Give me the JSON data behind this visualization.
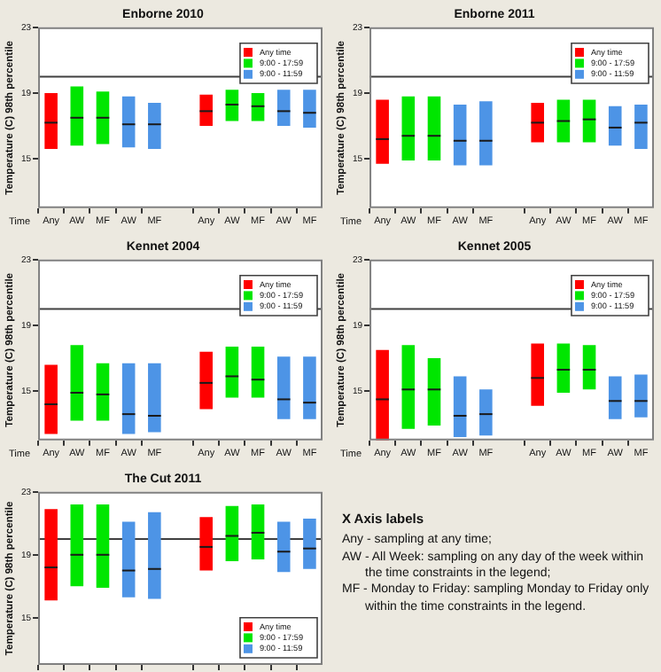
{
  "chart_data": [
    {
      "type": "box",
      "title": "Enborne 2010",
      "xlabel": "Time",
      "ylabel": "Temperature (C) 98th percentile",
      "categories": [
        "Any",
        "AW",
        "MF",
        "AW",
        "MF",
        null,
        "Any",
        "AW",
        "MF",
        "AW",
        "MF"
      ],
      "ylim": [
        12,
        23
      ],
      "yticks": [
        15,
        19,
        23
      ],
      "legend": "top right",
      "ref_lines": [
        {
          "axis": "y",
          "value": 20,
          "color": "#404040"
        }
      ],
      "series": [
        {
          "name": "Any time",
          "color": "#ff0000",
          "boxes": [
            {
              "low": 15.6,
              "q1": 15.6,
              "median": 17.2,
              "q3": 19.0,
              "high": 19.0
            },
            null,
            null,
            null,
            null,
            null,
            {
              "low": 17.0,
              "q1": 17.0,
              "median": 17.9,
              "q3": 18.9,
              "high": 18.9
            },
            null,
            null,
            null,
            null
          ]
        },
        {
          "name": "9:00 - 17:59",
          "color": "#00e600",
          "boxes": [
            null,
            {
              "low": 15.8,
              "q1": 15.8,
              "median": 17.5,
              "q3": 19.4,
              "high": 19.4
            },
            {
              "low": 15.9,
              "q1": 15.9,
              "median": 17.5,
              "q3": 19.1,
              "high": 19.1
            },
            null,
            null,
            null,
            null,
            {
              "low": 17.3,
              "q1": 17.3,
              "median": 18.3,
              "q3": 19.2,
              "high": 19.2
            },
            {
              "low": 17.3,
              "q1": 17.3,
              "median": 18.2,
              "q3": 19.0,
              "high": 19.0
            },
            null,
            null
          ]
        },
        {
          "name": "9:00 - 11:59",
          "color": "#4d94e6",
          "boxes": [
            null,
            null,
            null,
            {
              "low": 15.7,
              "q1": 15.7,
              "median": 17.1,
              "q3": 18.8,
              "high": 18.8
            },
            {
              "low": 15.6,
              "q1": 15.6,
              "median": 17.1,
              "q3": 18.4,
              "high": 18.4
            },
            null,
            null,
            null,
            null,
            {
              "low": 17.0,
              "q1": 17.0,
              "median": 17.9,
              "q3": 19.2,
              "high": 19.2
            },
            {
              "low": 16.9,
              "q1": 16.9,
              "median": 17.8,
              "q3": 19.2,
              "high": 19.2
            }
          ]
        }
      ]
    },
    {
      "type": "box",
      "title": "Enborne 2011",
      "xlabel": "Time",
      "ylabel": "Temperature (C) 98th percentile",
      "categories": [
        "Any",
        "AW",
        "MF",
        "AW",
        "MF",
        null,
        "Any",
        "AW",
        "MF",
        "AW",
        "MF"
      ],
      "ylim": [
        12,
        23
      ],
      "yticks": [
        15,
        19,
        23
      ],
      "legend": "top right",
      "ref_lines": [
        {
          "axis": "y",
          "value": 20,
          "color": "#404040"
        }
      ],
      "series": [
        {
          "name": "Any time",
          "color": "#ff0000",
          "boxes": [
            {
              "low": 14.7,
              "q1": 14.7,
              "median": 16.2,
              "q3": 18.6,
              "high": 18.6
            },
            null,
            null,
            null,
            null,
            null,
            {
              "low": 16.0,
              "q1": 16.0,
              "median": 17.2,
              "q3": 18.4,
              "high": 18.4
            },
            null,
            null,
            null,
            null
          ]
        },
        {
          "name": "9:00 - 17:59",
          "color": "#00e600",
          "boxes": [
            null,
            {
              "low": 14.9,
              "q1": 14.9,
              "median": 16.4,
              "q3": 18.8,
              "high": 18.8
            },
            {
              "low": 14.9,
              "q1": 14.9,
              "median": 16.4,
              "q3": 18.8,
              "high": 18.8
            },
            null,
            null,
            null,
            null,
            {
              "low": 16.0,
              "q1": 16.0,
              "median": 17.3,
              "q3": 18.6,
              "high": 18.6
            },
            {
              "low": 16.0,
              "q1": 16.0,
              "median": 17.4,
              "q3": 18.6,
              "high": 18.6
            },
            null,
            null
          ]
        },
        {
          "name": "9:00 - 11:59",
          "color": "#4d94e6",
          "boxes": [
            null,
            null,
            null,
            {
              "low": 14.6,
              "q1": 14.6,
              "median": 16.1,
              "q3": 18.3,
              "high": 18.3
            },
            {
              "low": 14.6,
              "q1": 14.6,
              "median": 16.1,
              "q3": 18.5,
              "high": 18.5
            },
            null,
            null,
            null,
            null,
            {
              "low": 15.8,
              "q1": 15.8,
              "median": 16.9,
              "q3": 18.2,
              "high": 18.2
            },
            {
              "low": 15.6,
              "q1": 15.6,
              "median": 17.2,
              "q3": 18.3,
              "high": 18.3
            }
          ]
        }
      ]
    },
    {
      "type": "box",
      "title": "Kennet 2004",
      "xlabel": "Time",
      "ylabel": "Temperature (C) 98th percentile",
      "categories": [
        "Any",
        "AW",
        "MF",
        "AW",
        "MF",
        null,
        "Any",
        "AW",
        "MF",
        "AW",
        "MF"
      ],
      "ylim": [
        12,
        23
      ],
      "yticks": [
        15,
        19,
        23
      ],
      "legend": "top right",
      "ref_lines": [
        {
          "axis": "y",
          "value": 20,
          "color": "#404040"
        }
      ],
      "series": [
        {
          "name": "Any time",
          "color": "#ff0000",
          "boxes": [
            {
              "low": 12.4,
              "q1": 12.4,
              "median": 14.2,
              "q3": 16.6,
              "high": 16.6
            },
            null,
            null,
            null,
            null,
            null,
            {
              "low": 13.9,
              "q1": 13.9,
              "median": 15.5,
              "q3": 17.4,
              "high": 17.4
            },
            null,
            null,
            null,
            null
          ]
        },
        {
          "name": "9:00 - 17:59",
          "color": "#00e600",
          "boxes": [
            null,
            {
              "low": 13.2,
              "q1": 13.2,
              "median": 14.9,
              "q3": 17.8,
              "high": 17.8
            },
            {
              "low": 13.2,
              "q1": 13.2,
              "median": 14.8,
              "q3": 16.7,
              "high": 16.7
            },
            null,
            null,
            null,
            null,
            {
              "low": 14.6,
              "q1": 14.6,
              "median": 15.9,
              "q3": 17.7,
              "high": 17.7
            },
            {
              "low": 14.6,
              "q1": 14.6,
              "median": 15.7,
              "q3": 17.7,
              "high": 17.7
            },
            null,
            null
          ]
        },
        {
          "name": "9:00 - 11:59",
          "color": "#4d94e6",
          "boxes": [
            null,
            null,
            null,
            {
              "low": 12.4,
              "q1": 12.4,
              "median": 13.6,
              "q3": 16.7,
              "high": 16.7
            },
            {
              "low": 12.5,
              "q1": 12.5,
              "median": 13.5,
              "q3": 16.7,
              "high": 16.7
            },
            null,
            null,
            null,
            null,
            {
              "low": 13.3,
              "q1": 13.3,
              "median": 14.5,
              "q3": 17.1,
              "high": 17.1
            },
            {
              "low": 13.3,
              "q1": 13.3,
              "median": 14.3,
              "q3": 17.1,
              "high": 17.1
            }
          ]
        }
      ]
    },
    {
      "type": "box",
      "title": "Kennet 2005",
      "xlabel": "Time",
      "ylabel": "Temperature (C) 98th percentile",
      "categories": [
        "Any",
        "AW",
        "MF",
        "AW",
        "MF",
        null,
        "Any",
        "AW",
        "MF",
        "AW",
        "MF"
      ],
      "ylim": [
        12,
        23
      ],
      "yticks": [
        15,
        19,
        23
      ],
      "legend": "top right",
      "ref_lines": [
        {
          "axis": "y",
          "value": 20,
          "color": "#404040"
        }
      ],
      "series": [
        {
          "name": "Any time",
          "color": "#ff0000",
          "boxes": [
            {
              "low": 12.0,
              "q1": 12.0,
              "median": 14.5,
              "q3": 17.5,
              "high": 17.5
            },
            null,
            null,
            null,
            null,
            null,
            {
              "low": 14.1,
              "q1": 14.1,
              "median": 15.8,
              "q3": 17.9,
              "high": 17.9
            },
            null,
            null,
            null,
            null
          ]
        },
        {
          "name": "9:00 - 17:59",
          "color": "#00e600",
          "boxes": [
            null,
            {
              "low": 12.7,
              "q1": 12.7,
              "median": 15.1,
              "q3": 17.8,
              "high": 17.8
            },
            {
              "low": 12.9,
              "q1": 12.9,
              "median": 15.1,
              "q3": 17.0,
              "high": 17.0
            },
            null,
            null,
            null,
            null,
            {
              "low": 14.9,
              "q1": 14.9,
              "median": 16.3,
              "q3": 17.9,
              "high": 17.9
            },
            {
              "low": 15.1,
              "q1": 15.1,
              "median": 16.3,
              "q3": 17.8,
              "high": 17.8
            },
            null,
            null
          ]
        },
        {
          "name": "9:00 - 11:59",
          "color": "#4d94e6",
          "boxes": [
            null,
            null,
            null,
            {
              "low": 12.2,
              "q1": 12.2,
              "median": 13.5,
              "q3": 15.9,
              "high": 15.9
            },
            {
              "low": 12.3,
              "q1": 12.3,
              "median": 13.6,
              "q3": 15.1,
              "high": 15.1
            },
            null,
            null,
            null,
            null,
            {
              "low": 13.3,
              "q1": 13.3,
              "median": 14.4,
              "q3": 15.9,
              "high": 15.9
            },
            {
              "low": 13.4,
              "q1": 13.4,
              "median": 14.4,
              "q3": 16.0,
              "high": 16.0
            }
          ]
        }
      ]
    },
    {
      "type": "box",
      "title": "The Cut 2011",
      "ylabel": "Temperature (C) 98th percentile",
      "categories": [
        null,
        null,
        null,
        null,
        null,
        null,
        null,
        null,
        null,
        null,
        null
      ],
      "tick_labels": "y",
      "ylim": [
        12,
        23
      ],
      "yticks": [
        15,
        19,
        23
      ],
      "legend": "bottom right",
      "ref_lines": [
        {
          "axis": "y",
          "value": 20,
          "color": "#404040"
        }
      ],
      "series": [
        {
          "name": "Any time",
          "color": "#ff0000",
          "boxes": [
            {
              "low": 16.1,
              "q1": 16.1,
              "median": 18.2,
              "q3": 21.9,
              "high": 21.9
            },
            null,
            null,
            null,
            null,
            null,
            {
              "low": 18.0,
              "q1": 18.0,
              "median": 19.5,
              "q3": 21.4,
              "high": 21.4
            },
            null,
            null,
            null,
            null
          ]
        },
        {
          "name": "9:00 - 17:59",
          "color": "#00e600",
          "boxes": [
            null,
            {
              "low": 17.0,
              "q1": 17.0,
              "median": 19.0,
              "q3": 22.2,
              "high": 22.2
            },
            {
              "low": 16.9,
              "q1": 16.9,
              "median": 19.0,
              "q3": 22.2,
              "high": 22.2
            },
            null,
            null,
            null,
            null,
            {
              "low": 18.6,
              "q1": 18.6,
              "median": 20.2,
              "q3": 22.1,
              "high": 22.1
            },
            {
              "low": 18.7,
              "q1": 18.7,
              "median": 20.4,
              "q3": 22.2,
              "high": 22.2
            },
            null,
            null
          ]
        },
        {
          "name": "9:00 - 11:59",
          "color": "#4d94e6",
          "boxes": [
            null,
            null,
            null,
            {
              "low": 16.3,
              "q1": 16.3,
              "median": 18.0,
              "q3": 21.1,
              "high": 21.1
            },
            {
              "low": 16.2,
              "q1": 16.2,
              "median": 18.1,
              "q3": 21.7,
              "high": 21.7
            },
            null,
            null,
            null,
            null,
            {
              "low": 17.9,
              "q1": 17.9,
              "median": 19.2,
              "q3": 21.1,
              "high": 21.1
            },
            {
              "low": 18.1,
              "q1": 18.1,
              "median": 19.4,
              "q3": 21.3,
              "high": 21.3
            }
          ]
        }
      ]
    },
    {
      "type": "other",
      "title": "X Axis labels",
      "annotations": [
        "Any - sampling at any time;",
        "AW - All Week: sampling on any day of the week within the time constraints in the legend;",
        "MF - Monday to Friday: sampling Monday to Friday only within the time constraints in the legend."
      ]
    }
  ]
}
